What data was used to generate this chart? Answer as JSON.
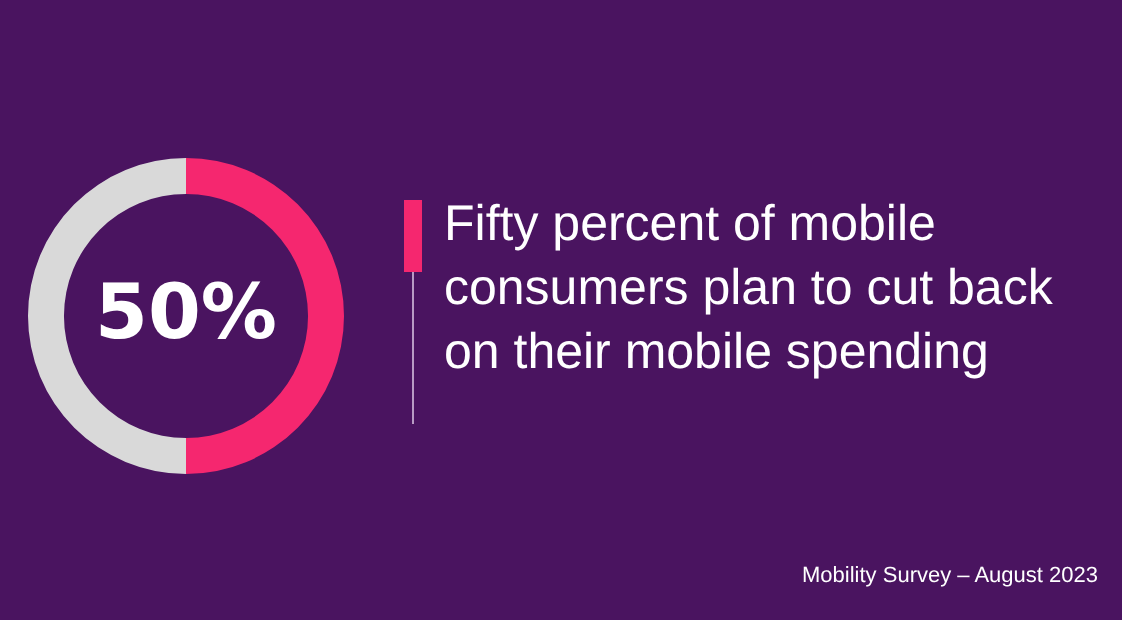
{
  "chart_data": {
    "type": "donut",
    "title": "Fifty percent of mobile consumers plan to cut back on their mobile spending",
    "categories": [
      null,
      null
    ],
    "values": [
      50,
      50
    ],
    "colors": [
      "#f5276f",
      "#d9d9d9"
    ],
    "value_labels": [
      "50%",
      null
    ],
    "annotations": [
      "Mobility Survey – August 2023"
    ]
  }
}
